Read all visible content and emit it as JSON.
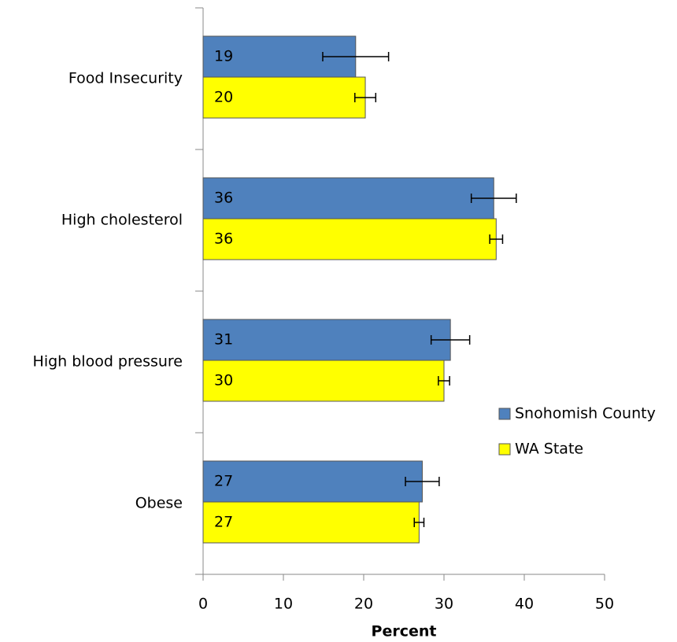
{
  "chart_data": {
    "type": "hbar",
    "categories": [
      "Food Insecurity",
      "High cholesterol",
      "High blood pressure",
      "Obese"
    ],
    "series": [
      {
        "name": "Snohomish County",
        "color": "#4f81bd",
        "label_color": "#ffffff",
        "values": [
          19.0,
          36.2,
          30.8,
          27.3
        ],
        "value_labels": [
          "19",
          "36",
          "31",
          "27"
        ],
        "errors": [
          4.1,
          2.8,
          2.4,
          2.1
        ]
      },
      {
        "name": "WA State",
        "color": "#ffff00",
        "label_color": "#000000",
        "values": [
          20.2,
          36.5,
          30.0,
          26.9
        ],
        "value_labels": [
          "20",
          "36",
          "30",
          "27"
        ],
        "errors": [
          1.3,
          0.8,
          0.7,
          0.6
        ]
      }
    ],
    "xlabel": "Percent",
    "xlim": [
      0,
      50
    ],
    "xticks": [
      0,
      10,
      20,
      30,
      40,
      50
    ],
    "legend": "right"
  }
}
